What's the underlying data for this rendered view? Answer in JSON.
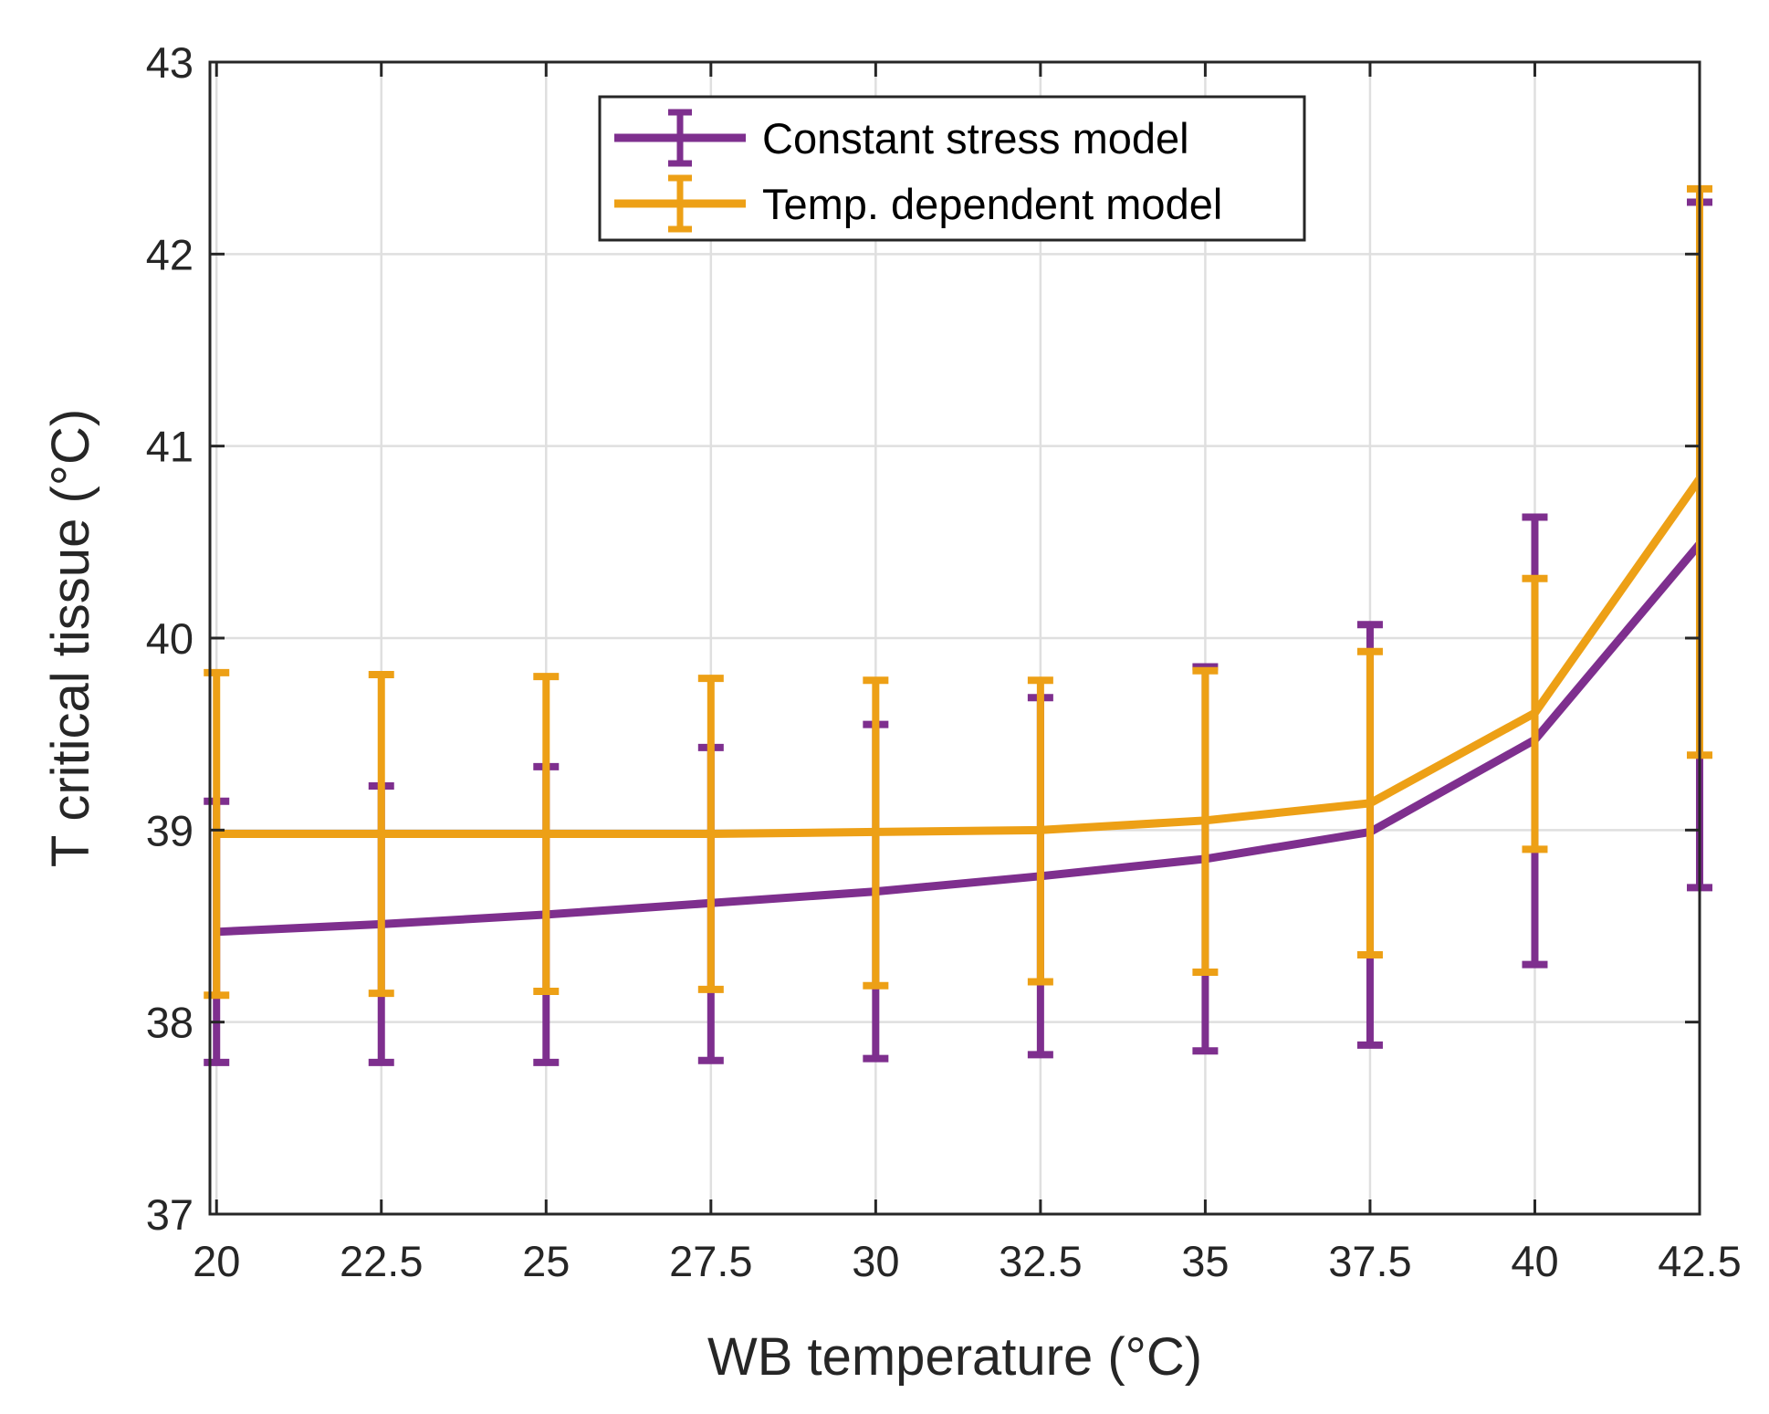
{
  "chart_data": {
    "type": "line",
    "title": "",
    "xlabel": "WB temperature  (°C)",
    "ylabel": "T critical tissue (°C)",
    "xlim": [
      19.9,
      42.5
    ],
    "ylim": [
      37,
      43
    ],
    "xticks": [
      20,
      22.5,
      25,
      27.5,
      30,
      32.5,
      35,
      37.5,
      40,
      42.5
    ],
    "xtick_labels": [
      "20",
      "22.5",
      "25",
      "27.5",
      "30",
      "32.5",
      "35",
      "37.5",
      "40",
      "42.5"
    ],
    "yticks": [
      37,
      38,
      39,
      40,
      41,
      42,
      43
    ],
    "ytick_labels": [
      "37",
      "38",
      "39",
      "40",
      "41",
      "42",
      "43"
    ],
    "grid": true,
    "legend_position": "top-center",
    "x": [
      20,
      22.5,
      25,
      27.5,
      30,
      32.5,
      35,
      37.5,
      40,
      42.5
    ],
    "series": [
      {
        "name": "Constant stress model",
        "color": "#7E2F8E",
        "values": [
          38.47,
          38.51,
          38.56,
          38.62,
          38.68,
          38.76,
          38.85,
          38.99,
          39.47,
          40.49
        ],
        "err_low": [
          37.79,
          37.79,
          37.79,
          37.8,
          37.81,
          37.83,
          37.85,
          37.88,
          38.3,
          38.7
        ],
        "err_high": [
          39.15,
          39.23,
          39.33,
          39.43,
          39.55,
          39.69,
          39.85,
          40.07,
          40.63,
          42.27
        ]
      },
      {
        "name": "Temp. dependent model",
        "color": "#EDA016",
        "values": [
          38.98,
          38.98,
          38.98,
          38.98,
          38.99,
          39.0,
          39.05,
          39.14,
          39.61,
          40.83
        ],
        "err_low": [
          38.14,
          38.15,
          38.16,
          38.17,
          38.19,
          38.21,
          38.26,
          38.35,
          38.9,
          39.39
        ],
        "err_high": [
          39.82,
          39.81,
          39.8,
          39.79,
          39.78,
          39.78,
          39.83,
          39.93,
          40.31,
          42.34
        ]
      }
    ]
  }
}
